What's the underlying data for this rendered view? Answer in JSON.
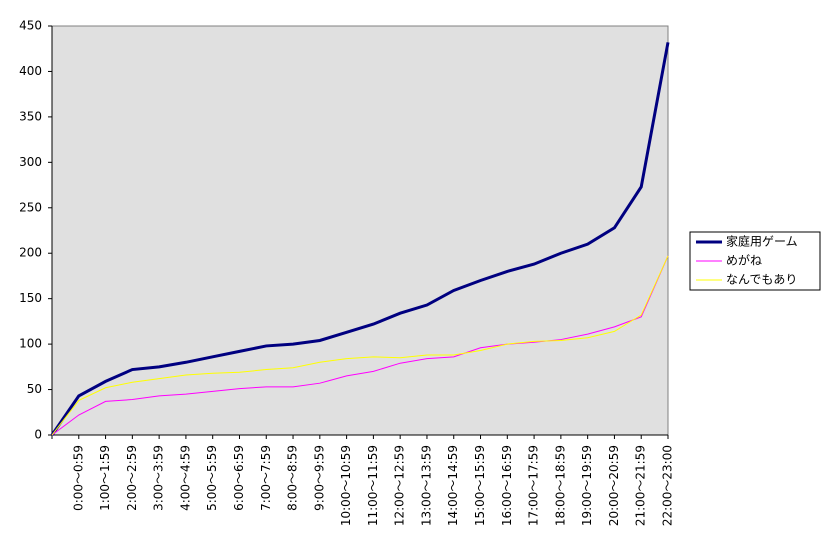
{
  "chart_data": {
    "type": "line",
    "categories": [
      null,
      "0:00～0:59",
      "1:00～1:59",
      "2:00～2:59",
      "3:00～3:59",
      "4:00～4:59",
      "5:00～5:59",
      "6:00～6:59",
      "7:00～7:59",
      "8:00～8:59",
      "9:00～9:59",
      "10:00～10:59",
      "11:00～11:59",
      "12:00～12:59",
      "13:00～13:59",
      "14:00～14:59",
      "15:00～15:59",
      "16:00～16:59",
      "17:00～17:59",
      "18:00～18:59",
      "19:00～19:59",
      "20:00～20:59",
      "21:00～21:59",
      "22:00～23:00"
    ],
    "series": [
      {
        "name": "家庭用ゲーム",
        "color": "#000080",
        "values": [
          0,
          43,
          59,
          72,
          75,
          80,
          86,
          92,
          98,
          100,
          104,
          113,
          122,
          134,
          143,
          159,
          170,
          180,
          188,
          200,
          210,
          228,
          273,
          432
        ]
      },
      {
        "name": "めがね",
        "color": "#ff00ff",
        "values": [
          0,
          22,
          37,
          39,
          43,
          45,
          48,
          51,
          53,
          53,
          57,
          65,
          70,
          79,
          84,
          86,
          96,
          100,
          102,
          105,
          111,
          119,
          130,
          197
        ]
      },
      {
        "name": "なんでもあり",
        "color": "#ffff00",
        "values": [
          0,
          38,
          52,
          58,
          62,
          66,
          68,
          69,
          72,
          74,
          80,
          84,
          86,
          85,
          88,
          88,
          93,
          100,
          103,
          104,
          107,
          114,
          132,
          197
        ]
      }
    ],
    "ylim": [
      0,
      450
    ],
    "yticks": [
      0,
      50,
      100,
      150,
      200,
      250,
      300,
      350,
      400,
      450
    ],
    "grid": false,
    "legend": "right"
  }
}
